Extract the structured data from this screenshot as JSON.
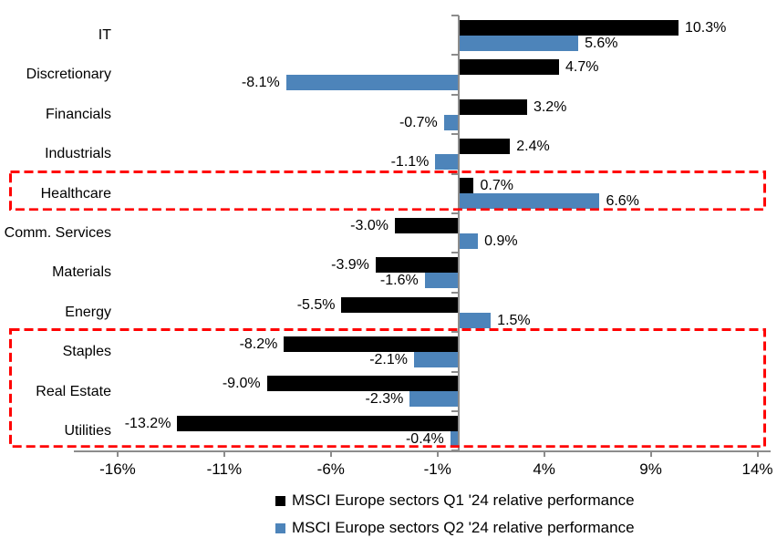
{
  "chart_data": {
    "type": "bar",
    "orientation": "horizontal",
    "title": "",
    "categories": [
      "IT",
      "Discretionary",
      "Financials",
      "Industrials",
      "Healthcare",
      "Comm. Services",
      "Materials",
      "Energy",
      "Staples",
      "Real Estate",
      "Utilities"
    ],
    "series": [
      {
        "name": "MSCI Europe sectors Q1 '24 relative performance",
        "color": "#000000",
        "values": [
          10.3,
          4.7,
          3.2,
          2.4,
          0.7,
          -3.0,
          -3.9,
          -5.5,
          -8.2,
          -9.0,
          -13.2
        ],
        "labels": [
          "10.3%",
          "4.7%",
          "3.2%",
          "2.4%",
          "0.7%",
          "-3.0%",
          "-3.9%",
          "-5.5%",
          "-8.2%",
          "-9.0%",
          "-13.2%"
        ]
      },
      {
        "name": "MSCI Europe sectors Q2 '24 relative performance",
        "color": "#4d84ba",
        "values": [
          5.6,
          -8.1,
          -0.7,
          -1.1,
          6.6,
          0.9,
          -1.6,
          1.5,
          -2.1,
          -2.3,
          -0.4
        ],
        "labels": [
          "5.6%",
          "-8.1%",
          "-0.7%",
          "-1.1%",
          "6.6%",
          "0.9%",
          "-1.6%",
          "1.5%",
          "-2.1%",
          "-2.3%",
          "-0.4%"
        ]
      }
    ],
    "x_axis": {
      "min": -18.05,
      "max": 14.62,
      "ticks": [
        -16,
        -11,
        -6,
        -1,
        4,
        9,
        14
      ],
      "tick_labels": [
        "-16%",
        "-11%",
        "-6%",
        "-1%",
        "4%",
        "9%",
        "14%"
      ],
      "unit": "%"
    },
    "grid": false,
    "legend_position": "bottom",
    "highlights": [
      {
        "categories": [
          "Healthcare"
        ],
        "style": "red-dashed-box"
      },
      {
        "categories": [
          "Staples",
          "Real Estate",
          "Utilities"
        ],
        "style": "red-dashed-box"
      }
    ],
    "highlight_color": "#ff0000",
    "axis_color": "#8c8c8c"
  }
}
